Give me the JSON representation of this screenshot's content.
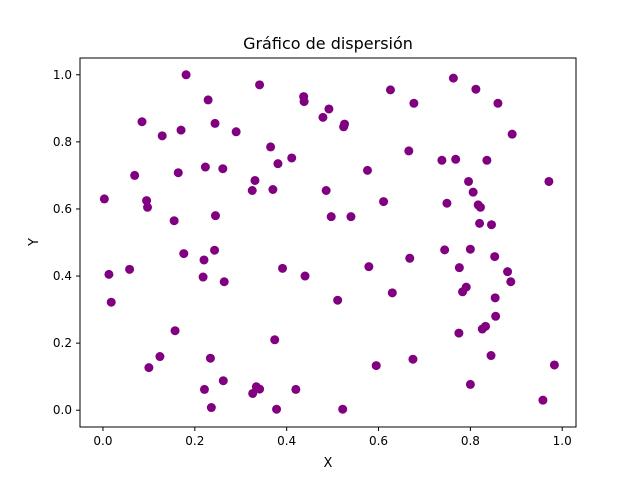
{
  "chart_data": {
    "type": "scatter",
    "title": "Gráfico de dispersión",
    "xlabel": "X",
    "ylabel": "Y",
    "xlim": [
      -0.05,
      1.03
    ],
    "ylim": [
      -0.05,
      1.05
    ],
    "xticks": [
      0.0,
      0.2,
      0.4,
      0.6,
      0.8,
      1.0
    ],
    "xtick_labels": [
      "0.0",
      "0.2",
      "0.4",
      "0.6",
      "0.8",
      "1.0"
    ],
    "yticks": [
      0.0,
      0.2,
      0.4,
      0.6,
      0.8,
      1.0
    ],
    "ytick_labels": [
      "0.0",
      "0.2",
      "0.4",
      "0.6",
      "0.8",
      "1.0"
    ],
    "grid": false,
    "series": [
      {
        "color": "#800080",
        "points": [
          [
            0.003,
            0.63
          ],
          [
            0.013,
            0.405
          ],
          [
            0.018,
            0.322
          ],
          [
            0.058,
            0.42
          ],
          [
            0.069,
            0.7
          ],
          [
            0.085,
            0.86
          ],
          [
            0.095,
            0.625
          ],
          [
            0.097,
            0.605
          ],
          [
            0.1,
            0.127
          ],
          [
            0.124,
            0.16
          ],
          [
            0.129,
            0.818
          ],
          [
            0.155,
            0.565
          ],
          [
            0.157,
            0.237
          ],
          [
            0.164,
            0.708
          ],
          [
            0.17,
            0.835
          ],
          [
            0.176,
            0.467
          ],
          [
            0.181,
            1.0
          ],
          [
            0.218,
            0.397
          ],
          [
            0.22,
            0.448
          ],
          [
            0.221,
            0.062
          ],
          [
            0.223,
            0.725
          ],
          [
            0.229,
            0.925
          ],
          [
            0.234,
            0.155
          ],
          [
            0.236,
            0.008
          ],
          [
            0.243,
            0.477
          ],
          [
            0.244,
            0.855
          ],
          [
            0.245,
            0.58
          ],
          [
            0.261,
            0.72
          ],
          [
            0.262,
            0.088
          ],
          [
            0.264,
            0.383
          ],
          [
            0.29,
            0.83
          ],
          [
            0.325,
            0.655
          ],
          [
            0.326,
            0.05
          ],
          [
            0.331,
            0.685
          ],
          [
            0.334,
            0.07
          ],
          [
            0.341,
            0.97
          ],
          [
            0.341,
            0.063
          ],
          [
            0.365,
            0.785
          ],
          [
            0.37,
            0.658
          ],
          [
            0.374,
            0.21
          ],
          [
            0.378,
            0.003
          ],
          [
            0.381,
            0.735
          ],
          [
            0.391,
            0.423
          ],
          [
            0.411,
            0.752
          ],
          [
            0.42,
            0.062
          ],
          [
            0.437,
            0.935
          ],
          [
            0.44,
            0.4
          ],
          [
            0.438,
            0.92
          ],
          [
            0.479,
            0.873
          ],
          [
            0.486,
            0.655
          ],
          [
            0.492,
            0.898
          ],
          [
            0.497,
            0.577
          ],
          [
            0.511,
            0.328
          ],
          [
            0.522,
            0.003
          ],
          [
            0.524,
            0.845
          ],
          [
            0.526,
            0.853
          ],
          [
            0.54,
            0.577
          ],
          [
            0.576,
            0.715
          ],
          [
            0.579,
            0.428
          ],
          [
            0.595,
            0.133
          ],
          [
            0.611,
            0.622
          ],
          [
            0.626,
            0.955
          ],
          [
            0.63,
            0.35
          ],
          [
            0.666,
            0.773
          ],
          [
            0.668,
            0.453
          ],
          [
            0.675,
            0.152
          ],
          [
            0.677,
            0.915
          ],
          [
            0.738,
            0.745
          ],
          [
            0.744,
            0.478
          ],
          [
            0.749,
            0.617
          ],
          [
            0.763,
            0.99
          ],
          [
            0.768,
            0.748
          ],
          [
            0.775,
            0.23
          ],
          [
            0.776,
            0.425
          ],
          [
            0.783,
            0.353
          ],
          [
            0.791,
            0.367
          ],
          [
            0.796,
            0.682
          ],
          [
            0.8,
            0.077
          ],
          [
            0.8,
            0.48
          ],
          [
            0.806,
            0.65
          ],
          [
            0.812,
            0.957
          ],
          [
            0.817,
            0.612
          ],
          [
            0.82,
            0.557
          ],
          [
            0.822,
            0.605
          ],
          [
            0.826,
            0.242
          ],
          [
            0.833,
            0.25
          ],
          [
            0.836,
            0.745
          ],
          [
            0.845,
            0.163
          ],
          [
            0.846,
            0.553
          ],
          [
            0.853,
            0.458
          ],
          [
            0.854,
            0.335
          ],
          [
            0.855,
            0.28
          ],
          [
            0.86,
            0.915
          ],
          [
            0.881,
            0.413
          ],
          [
            0.888,
            0.383
          ],
          [
            0.891,
            0.823
          ],
          [
            0.958,
            0.03
          ],
          [
            0.971,
            0.682
          ],
          [
            0.983,
            0.135
          ]
        ]
      }
    ]
  }
}
